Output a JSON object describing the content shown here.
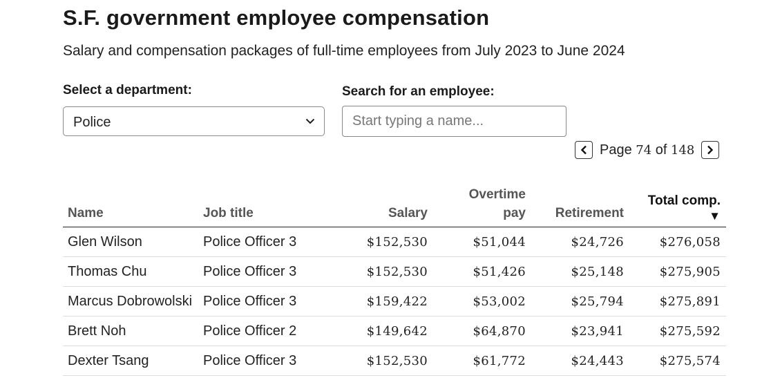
{
  "header": {
    "title": "S.F. government employee compensation",
    "subtitle": "Salary and compensation packages of full-time employees from July 2023 to June 2024"
  },
  "filters": {
    "department_label": "Select a department:",
    "department_value": "Police",
    "search_label": "Search for an employee:",
    "search_placeholder": "Start typing a name...",
    "search_value": ""
  },
  "pagination": {
    "page_word": "Page",
    "current_page": "74",
    "of_word": "of",
    "total_pages": "148"
  },
  "table": {
    "columns": {
      "name": "Name",
      "job_title": "Job title",
      "salary": "Salary",
      "overtime": "Overtime pay",
      "retirement": "Retirement",
      "total": "Total comp."
    },
    "sort_indicator": "▼",
    "rows": [
      {
        "name": "Glen Wilson",
        "job_title": "Police Officer 3",
        "salary": "$152,530",
        "overtime": "$51,044",
        "retirement": "$24,726",
        "total": "$276,058"
      },
      {
        "name": "Thomas Chu",
        "job_title": "Police Officer 3",
        "salary": "$152,530",
        "overtime": "$51,426",
        "retirement": "$25,148",
        "total": "$275,905"
      },
      {
        "name": "Marcus Dobrowolski",
        "job_title": "Police Officer 3",
        "salary": "$159,422",
        "overtime": "$53,002",
        "retirement": "$25,794",
        "total": "$275,891"
      },
      {
        "name": "Brett Noh",
        "job_title": "Police Officer 2",
        "salary": "$149,642",
        "overtime": "$64,870",
        "retirement": "$23,941",
        "total": "$275,592"
      },
      {
        "name": "Dexter Tsang",
        "job_title": "Police Officer 3",
        "salary": "$152,530",
        "overtime": "$61,772",
        "retirement": "$24,443",
        "total": "$275,574"
      }
    ]
  },
  "icons": {
    "select_chevron": "chevron-down-icon",
    "prev": "chevron-left-icon",
    "next": "chevron-right-icon"
  }
}
